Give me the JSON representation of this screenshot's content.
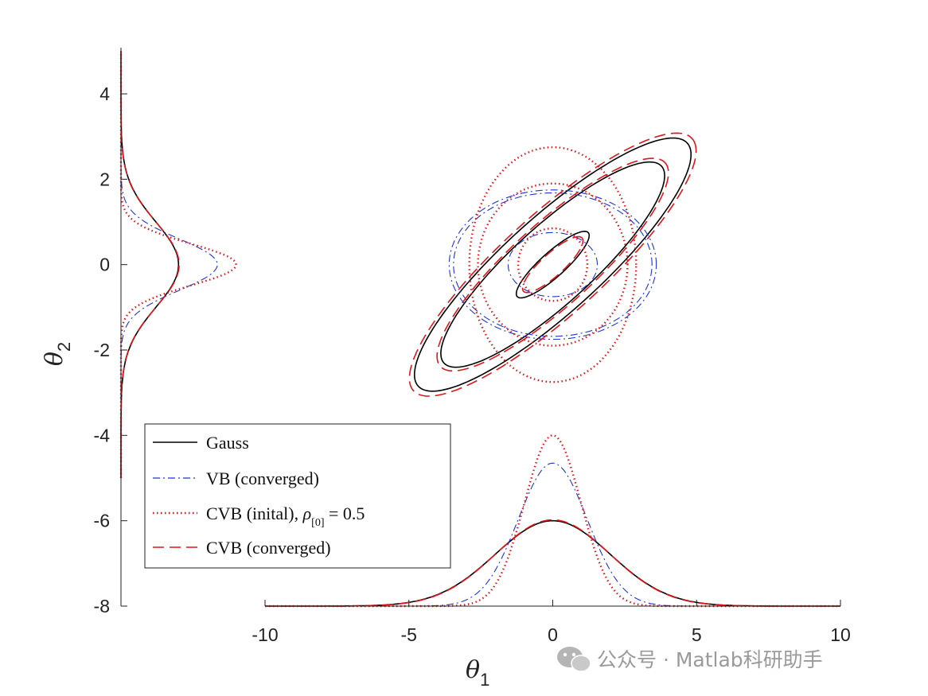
{
  "chart_data": {
    "type": "line",
    "xlabel": "θ",
    "xlabel_sub": "1",
    "ylabel": "θ",
    "ylabel_sub": "2",
    "xlim": [
      -10,
      10
    ],
    "ylim": [
      -8,
      5
    ],
    "xticks": [
      -10,
      -5,
      0,
      5,
      10
    ],
    "yticks": [
      4,
      2,
      0,
      -2,
      -4,
      -6,
      -8
    ],
    "xtick_labels": [
      "-10",
      "-5",
      "0",
      "5",
      "10"
    ],
    "ytick_labels": [
      "4",
      "2",
      "0",
      "-2",
      "-4",
      "-6",
      "-8"
    ],
    "legend_position": "lower-left",
    "series": [
      {
        "name": "Gauss",
        "color": "#000000",
        "style": "solid",
        "peak_height": 2.0,
        "sigma": 2.0,
        "contours": [
          {
            "cx": 0,
            "cy": 0,
            "rx": 1.45,
            "ry": 0.33,
            "angle": 30
          },
          {
            "cx": 0,
            "cy": 0,
            "rx": 4.45,
            "ry": 1.05,
            "angle": 30
          },
          {
            "cx": 0,
            "cy": 0,
            "rx": 5.5,
            "ry": 1.28,
            "angle": 30
          }
        ]
      },
      {
        "name": "VB (converged)",
        "color": "#1f35d6",
        "style": "dash-dot",
        "peak_height": 3.35,
        "sigma": 1.2,
        "contours": [
          {
            "cx": 0,
            "cy": 0,
            "rx": 1.55,
            "ry": 0.75,
            "angle": 0
          },
          {
            "cx": 0,
            "cy": 0,
            "rx": 3.45,
            "ry": 1.68,
            "angle": 0
          },
          {
            "cx": 0,
            "cy": 0,
            "rx": 3.6,
            "ry": 1.75,
            "angle": 0
          }
        ]
      },
      {
        "name": "CVB (inital), ",
        "legend_math": {
          "rho": "ρ",
          "sub": "[0]",
          "value": " = 0.5"
        },
        "color": "#e0161b",
        "style": "dotted",
        "peak_height": 4.0,
        "sigma": 0.98,
        "contours": [
          {
            "cx": 0,
            "cy": 0,
            "rx": 1.2,
            "ry": 0.85,
            "angle": 0
          },
          {
            "cx": 0,
            "cy": 0,
            "rx": 2.6,
            "ry": 1.9,
            "angle": 0
          },
          {
            "cx": 0,
            "cy": 0,
            "rx": 2.9,
            "ry": 2.75,
            "angle": 0
          }
        ]
      },
      {
        "name": "CVB (converged)",
        "color": "#e0161b",
        "style": "dashed",
        "peak_height": 2.02,
        "sigma": 1.98,
        "contours": [
          {
            "cx": 0,
            "cy": 0,
            "rx": 1.2,
            "ry": 0.3,
            "angle": 30
          },
          {
            "cx": 0,
            "cy": 0,
            "rx": 4.6,
            "ry": 1.1,
            "angle": 30
          },
          {
            "cx": 0,
            "cy": 0,
            "rx": 5.7,
            "ry": 1.35,
            "angle": 30
          }
        ]
      }
    ]
  },
  "watermark": {
    "icon": "wechat-icon",
    "text": "公众号 · Matlab科研助手"
  }
}
